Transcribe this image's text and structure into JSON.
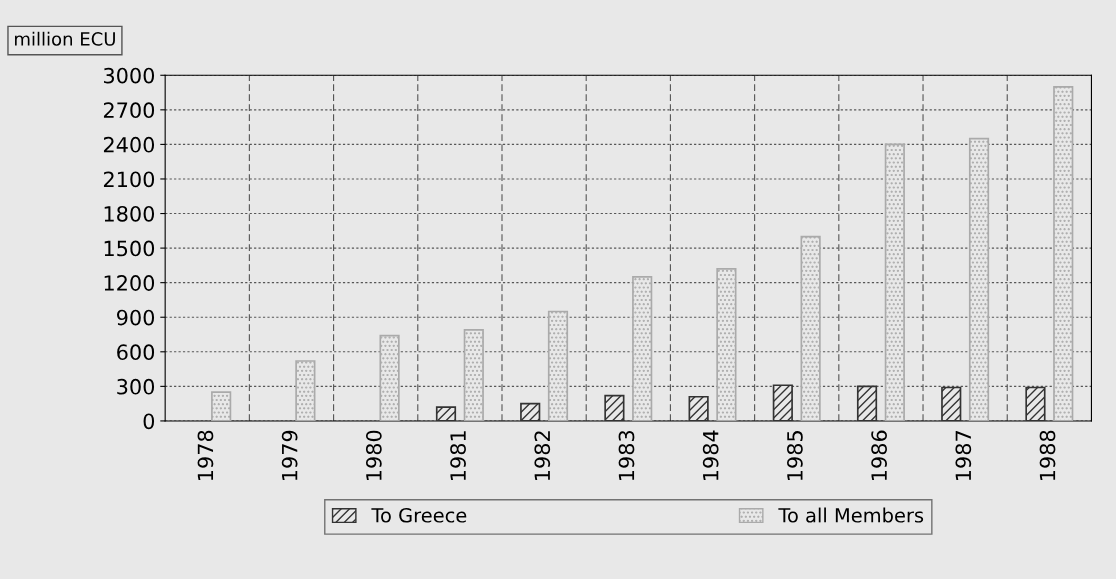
{
  "chart_data": {
    "type": "bar",
    "ylabel": "million ECU",
    "categories": [
      "1978",
      "1979",
      "1980",
      "1981",
      "1982",
      "1983",
      "1984",
      "1985",
      "1986",
      "1987",
      "1988"
    ],
    "series": [
      {
        "name": "To Greece",
        "color": "#333333",
        "values": [
          null,
          null,
          null,
          120,
          150,
          220,
          210,
          310,
          300,
          290,
          290
        ]
      },
      {
        "name": "To all Members",
        "color": "#aaaaaa",
        "values": [
          250,
          520,
          740,
          790,
          950,
          1250,
          1320,
          1600,
          2400,
          2450,
          2900
        ]
      }
    ],
    "ylim": [
      0,
      3000
    ],
    "yticks": [
      0,
      300,
      600,
      900,
      1200,
      1500,
      1800,
      2100,
      2400,
      2700,
      3000
    ],
    "grid": true,
    "legend": "bottom"
  }
}
